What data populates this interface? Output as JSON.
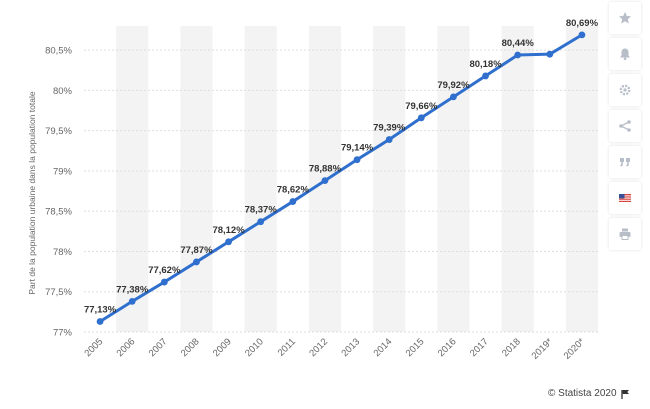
{
  "chart_data": {
    "type": "line",
    "ylabel": "Part de la population urbaine dans la population totale",
    "categories": [
      "2005",
      "2006",
      "2007",
      "2008",
      "2009",
      "2010",
      "2011",
      "2012",
      "2013",
      "2014",
      "2015",
      "2016",
      "2017",
      "2018",
      "2019*",
      "2020*"
    ],
    "series": [
      {
        "values": [
          77.13,
          77.38,
          77.62,
          77.87,
          78.12,
          78.37,
          78.62,
          78.88,
          79.14,
          79.39,
          79.66,
          79.92,
          80.18,
          80.44,
          80.45,
          80.69
        ],
        "labels": [
          "77,13%",
          "77,38%",
          "77,62%",
          "77,87%",
          "78,12%",
          "78,37%",
          "78,62%",
          "78,88%",
          "79,14%",
          "79,39%",
          "79,66%",
          "79,92%",
          "80,18%",
          "80,44%",
          "",
          "80,69%"
        ]
      }
    ],
    "ylim": [
      77,
      80.8
    ],
    "yticks": [
      77,
      77.5,
      78,
      78.5,
      79,
      79.5,
      80,
      80.5
    ],
    "ytick_labels": [
      "77%",
      "77,5%",
      "78%",
      "78,5%",
      "79%",
      "79,5%",
      "80%",
      "80,5%"
    ],
    "line_color": "#2f6fce",
    "band_color": "#f3f3f3",
    "grid": true
  },
  "toolbar": {
    "buttons": [
      "star-icon",
      "bell-icon",
      "gear-icon",
      "share-icon",
      "quote-icon",
      "flag-icon",
      "print-icon"
    ]
  },
  "footer": {
    "credit": "© Statista 2020"
  }
}
